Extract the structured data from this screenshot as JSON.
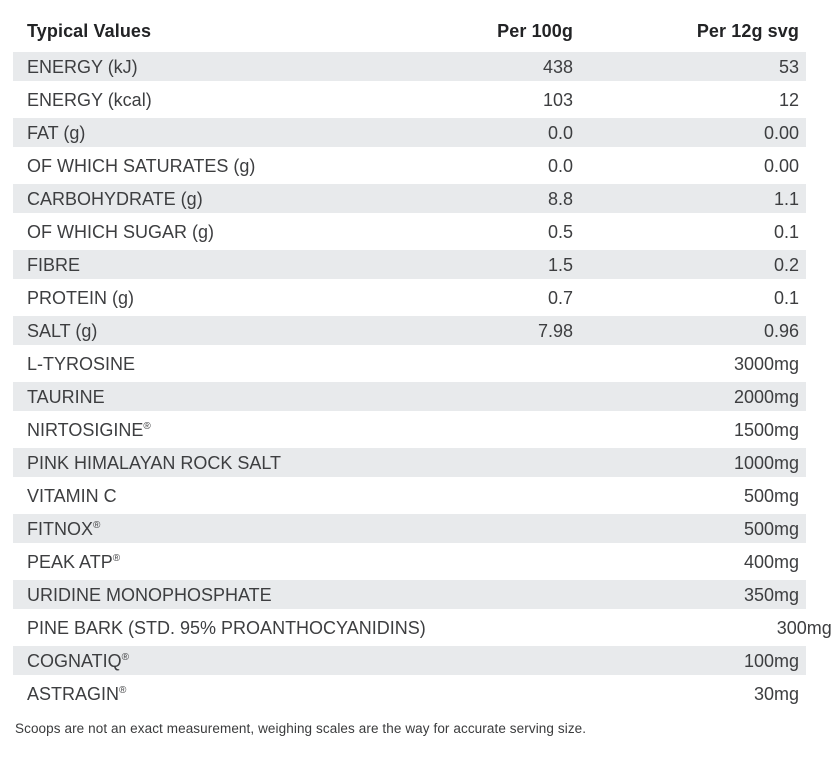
{
  "colors": {
    "stripe": "#e8eaec",
    "row_text": "#3d3e40",
    "header_text": "#222325",
    "note_text": "#3a3b3c"
  },
  "table": {
    "headers": [
      "Typical Values",
      "Per 100g",
      "Per 12g svg"
    ],
    "rows": [
      {
        "label": "ENERGY (kJ)",
        "per100g": "438",
        "per12g": "53"
      },
      {
        "label": "ENERGY (kcal)",
        "per100g": "103",
        "per12g": "12"
      },
      {
        "label": "FAT (g)",
        "per100g": "0.0",
        "per12g": "0.00"
      },
      {
        "label": "OF WHICH SATURATES (g)",
        "per100g": "0.0",
        "per12g": "0.00"
      },
      {
        "label": "CARBOHYDRATE (g)",
        "per100g": "8.8",
        "per12g": "1.1"
      },
      {
        "label": "OF WHICH SUGAR (g)",
        "per100g": "0.5",
        "per12g": "0.1"
      },
      {
        "label": "FIBRE",
        "per100g": "1.5",
        "per12g": "0.2"
      },
      {
        "label": "PROTEIN (g)",
        "per100g": "0.7",
        "per12g": "0.1"
      },
      {
        "label": "SALT (g)",
        "per100g": "7.98",
        "per12g": "0.96"
      },
      {
        "label": "L-TYROSINE",
        "per100g": "",
        "per12g": "3000mg"
      },
      {
        "label": "TAURINE",
        "per100g": "",
        "per12g": "2000mg"
      },
      {
        "label": "NIRTOSIGINE®",
        "per100g": "",
        "per12g": "1500mg"
      },
      {
        "label": "PINK HIMALAYAN ROCK SALT",
        "per100g": "",
        "per12g": "1000mg"
      },
      {
        "label": "VITAMIN C",
        "per100g": "",
        "per12g": "500mg"
      },
      {
        "label": "FITNOX®",
        "per100g": "",
        "per12g": "500mg"
      },
      {
        "label": "PEAK ATP®",
        "per100g": "",
        "per12g": "400mg"
      },
      {
        "label": "URIDINE MONOPHOSPHATE",
        "per100g": "",
        "per12g": "350mg"
      },
      {
        "label": "PINE BARK (STD. 95% PROANTHOCYANIDINS)",
        "per100g": "",
        "per12g": "300mg"
      },
      {
        "label": "COGNATIQ®",
        "per100g": "",
        "per12g": "100mg"
      },
      {
        "label": "ASTRAGIN®",
        "per100g": "",
        "per12g": "30mg"
      }
    ]
  },
  "footer": {
    "note": "Scoops are not an exact measurement, weighing scales are the way for accurate serving size."
  }
}
